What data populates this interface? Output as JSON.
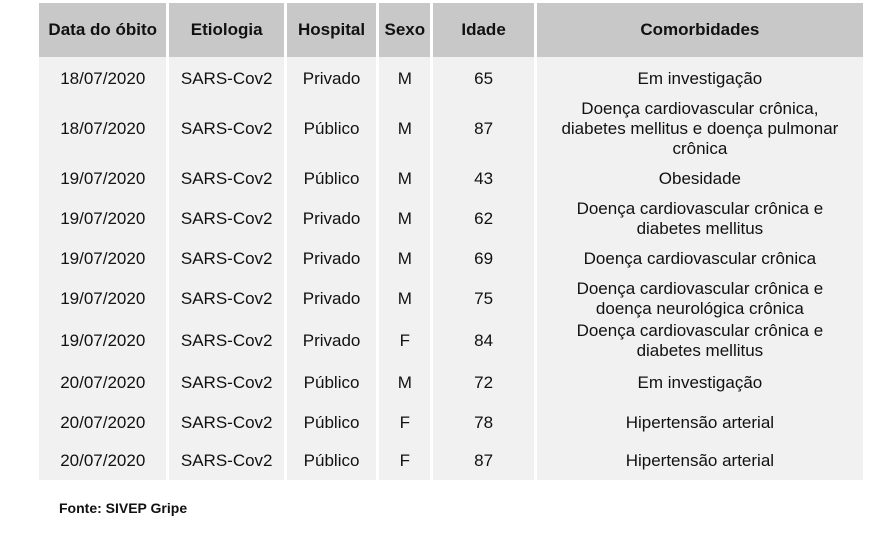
{
  "table": {
    "headers": [
      "Data do óbito",
      "Etiologia",
      "Hospital",
      "Sexo",
      "Idade",
      "Comorbidades"
    ],
    "rows": [
      {
        "date": "18/07/2020",
        "etiology": "SARS-Cov2",
        "hospital": "Privado",
        "sex": "M",
        "age": "65",
        "comorbidities": [
          "Em investigação"
        ]
      },
      {
        "date": "18/07/2020",
        "etiology": "SARS-Cov2",
        "hospital": "Público",
        "sex": "M",
        "age": "87",
        "comorbidities": [
          "Doença cardiovascular crônica,",
          "diabetes mellitus e doença pulmonar",
          "crônica"
        ]
      },
      {
        "date": "19/07/2020",
        "etiology": "SARS-Cov2",
        "hospital": "Público",
        "sex": "M",
        "age": "43",
        "comorbidities": [
          "Obesidade"
        ]
      },
      {
        "date": "19/07/2020",
        "etiology": "SARS-Cov2",
        "hospital": "Privado",
        "sex": "M",
        "age": "62",
        "comorbidities": [
          "Doença cardiovascular crônica e",
          "diabetes mellitus"
        ]
      },
      {
        "date": "19/07/2020",
        "etiology": "SARS-Cov2",
        "hospital": "Privado",
        "sex": "M",
        "age": "69",
        "comorbidities": [
          "Doença cardiovascular crônica"
        ]
      },
      {
        "date": "19/07/2020",
        "etiology": "SARS-Cov2",
        "hospital": "Privado",
        "sex": "M",
        "age": "75",
        "comorbidities": [
          "Doença cardiovascular crônica e",
          "doença neurológica crônica"
        ]
      },
      {
        "date": "19/07/2020",
        "etiology": "SARS-Cov2",
        "hospital": "Privado",
        "sex": "F",
        "age": "84",
        "comorbidities": [
          "Doença cardiovascular crônica e",
          "diabetes mellitus"
        ]
      },
      {
        "date": "20/07/2020",
        "etiology": "SARS-Cov2",
        "hospital": "Público",
        "sex": "M",
        "age": "72",
        "comorbidities": [
          "Em investigação"
        ]
      },
      {
        "date": "20/07/2020",
        "etiology": "SARS-Cov2",
        "hospital": "Público",
        "sex": "F",
        "age": "78",
        "comorbidities": [
          "Hipertensão arterial"
        ]
      },
      {
        "date": "20/07/2020",
        "etiology": "SARS-Cov2",
        "hospital": "Público",
        "sex": "F",
        "age": "87",
        "comorbidities": [
          "Hipertensão arterial"
        ]
      }
    ]
  },
  "source": "Fonte: SIVEP Gripe"
}
